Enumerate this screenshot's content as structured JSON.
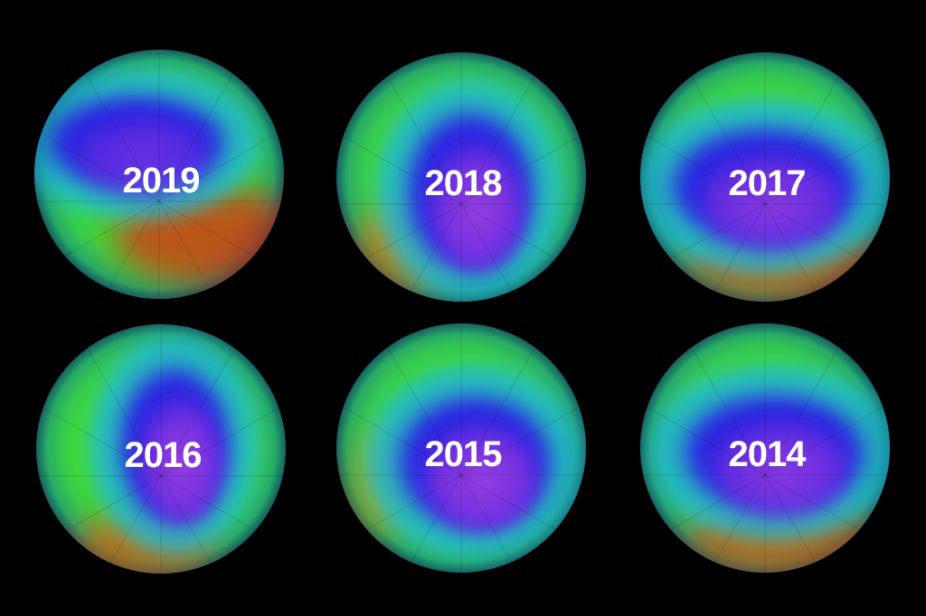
{
  "globes": [
    {
      "label": "2019"
    },
    {
      "label": "2018"
    },
    {
      "label": "2017"
    },
    {
      "label": "2016"
    },
    {
      "label": "2015"
    },
    {
      "label": "2014"
    }
  ]
}
